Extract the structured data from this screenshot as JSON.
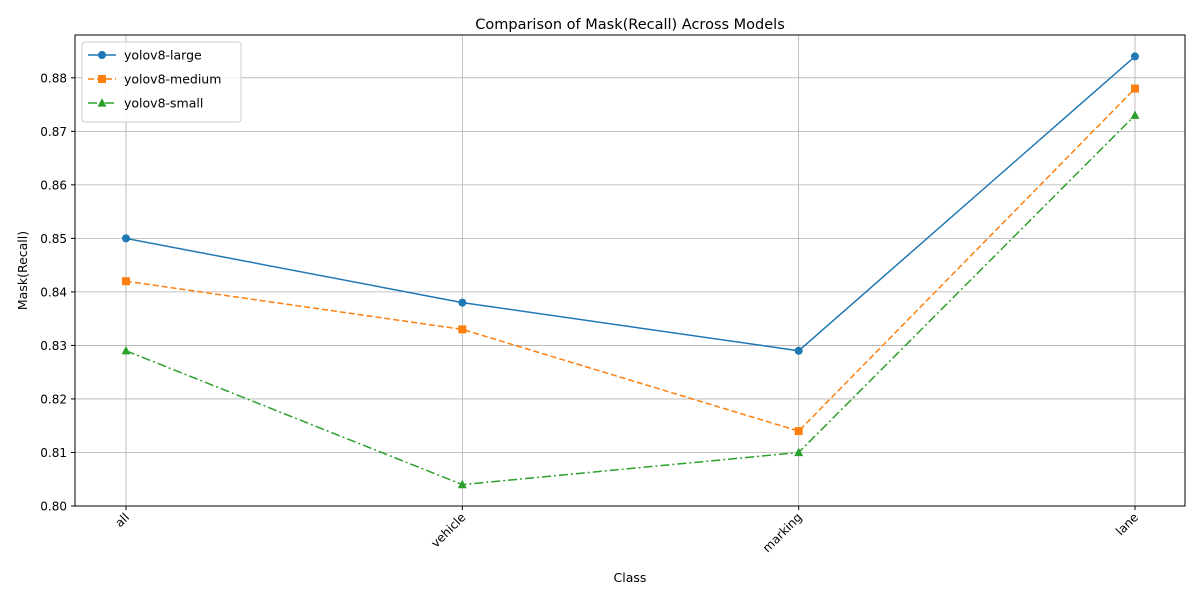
{
  "chart_data": {
    "type": "line",
    "title": "Comparison of Mask(Recall) Across Models",
    "xlabel": "Class",
    "ylabel": "Mask(Recall)",
    "categories": [
      "all",
      "vehicle",
      "marking",
      "lane"
    ],
    "ylim": [
      0.8,
      0.888
    ],
    "yticks": [
      "0.80",
      "0.81",
      "0.82",
      "0.83",
      "0.84",
      "0.85",
      "0.86",
      "0.87",
      "0.88"
    ],
    "grid": true,
    "legend_position": "top-left",
    "series": [
      {
        "name": "yolov8-large",
        "values": [
          0.85,
          0.838,
          0.829,
          0.884
        ],
        "color": "#1f77b4",
        "line_style": "solid",
        "marker": "circle"
      },
      {
        "name": "yolov8-medium",
        "values": [
          0.842,
          0.833,
          0.814,
          0.878
        ],
        "color": "#ff7f0e",
        "line_style": "dashed",
        "marker": "square"
      },
      {
        "name": "yolov8-small",
        "values": [
          0.829,
          0.804,
          0.81,
          0.873
        ],
        "color": "#2ca02c",
        "line_style": "dashdot",
        "marker": "triangle"
      }
    ]
  }
}
